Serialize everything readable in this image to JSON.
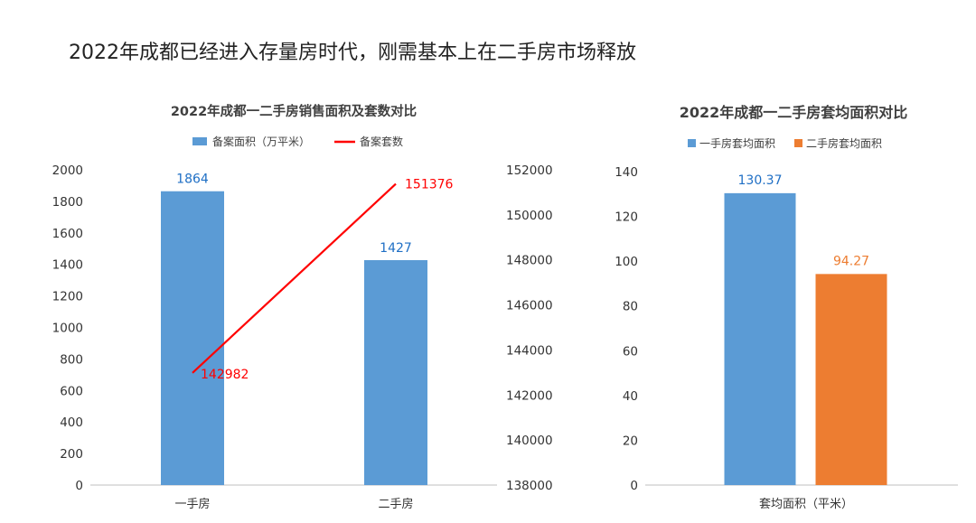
{
  "page": {
    "title": "2022年成都已经进入存量房时代，刚需基本上在二手房市场释放"
  },
  "colors": {
    "blue": "#5b9bd5",
    "orange": "#ed7d31",
    "red": "#ff0000",
    "blue_label": "#1f6fc5",
    "orange_label": "#ed7d31",
    "axis_text": "#333333",
    "axis_line": "#bfbfbf"
  },
  "chart_data": [
    {
      "type": "bar",
      "title": "2022年成都一二手房销售面积及套数对比",
      "categories": [
        "一手房",
        "二手房"
      ],
      "series": [
        {
          "name": "备案面积（万平米）",
          "type": "bar",
          "axis": "left",
          "values": [
            1864,
            1427
          ],
          "color": "#5b9bd5"
        },
        {
          "name": "备案套数",
          "type": "line",
          "axis": "right",
          "values": [
            142982,
            151376
          ],
          "color": "#ff0000"
        }
      ],
      "ylim": [
        0,
        2000
      ],
      "yticks": [
        0,
        200,
        400,
        600,
        800,
        1000,
        1200,
        1400,
        1600,
        1800,
        2000
      ],
      "y2lim": [
        138000,
        152000
      ],
      "y2ticks": [
        138000,
        140000,
        142000,
        144000,
        146000,
        148000,
        150000,
        152000
      ],
      "legend": "top",
      "grid": false
    },
    {
      "type": "bar",
      "title": "2022年成都一二手房套均面积对比",
      "categories": [
        "套均面积（平米）"
      ],
      "series": [
        {
          "name": "一手房套均面积",
          "values": [
            130.37
          ],
          "color": "#5b9bd5"
        },
        {
          "name": "二手房套均面积",
          "values": [
            94.27
          ],
          "color": "#ed7d31"
        }
      ],
      "ylim": [
        0,
        140
      ],
      "yticks": [
        0,
        20,
        40,
        60,
        80,
        100,
        120,
        140
      ],
      "legend": "top",
      "grid": false
    }
  ]
}
